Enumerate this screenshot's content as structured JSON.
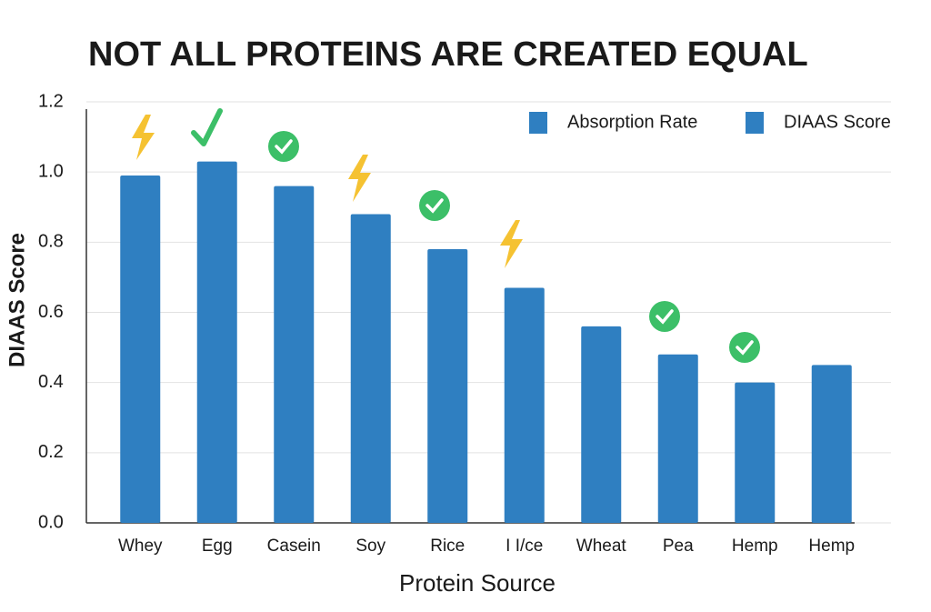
{
  "chart_data": {
    "type": "bar",
    "title": "NOT ALL PROTEINS ARE CREATED EQUAL",
    "x_label": "Protein Source",
    "y_label": "DIAAS Score",
    "categories": [
      "Whey",
      "Egg",
      "Casein",
      "Soy",
      "Rice",
      "I I/ce",
      "Wheat",
      "Pea",
      "Hemp",
      "Hemp"
    ],
    "values": [
      0.99,
      1.03,
      0.96,
      0.88,
      0.78,
      0.67,
      0.56,
      0.48,
      0.4,
      0.45
    ],
    "color": "#2f7fc1",
    "legend": [
      {
        "name": "Absorption Rate",
        "color": "#2f7fc1"
      },
      {
        "name": "DIAAS Score",
        "color": "#2f7fc1"
      }
    ],
    "ylim": [
      0,
      1.2
    ],
    "yticks": [
      {
        "value": 0,
        "label": "0.0"
      },
      0.2,
      0.4,
      0.6,
      0.8,
      {
        "value": 1,
        "label": "1.0"
      },
      1.2
    ],
    "grid": true
  }
}
